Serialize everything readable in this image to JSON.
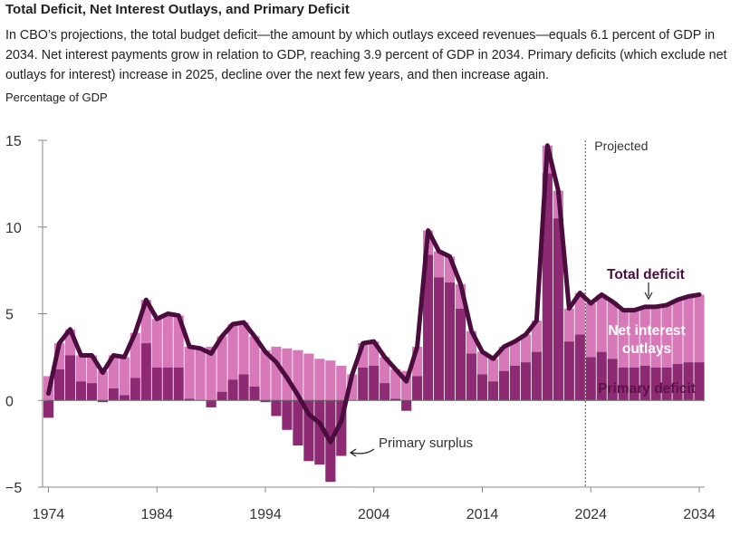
{
  "title": "Total Deficit, Net Interest Outlays, and Primary Deficit",
  "caption": "In CBO’s projections, the total budget deficit—the amount by which outlays exceed revenues—equals 6.1 percent of GDP in 2034. Net interest payments grow in relation to GDP, reaching 3.9 percent of GDP in 2034. Primary deficits (which exclude net outlays for interest) increase in 2025, decline over the next few years, and then increase again.",
  "colors": {
    "total_deficit": "#4a0d3e",
    "net_interest": "#d779b9",
    "primary": "#8e2a73",
    "net_interest_label": "#ffffff",
    "primary_label": "#5a1248"
  },
  "chart_data": {
    "type": "bar",
    "ylabel": "Percentage of GDP",
    "ylim": [
      -5,
      15
    ],
    "yticks": [
      "15",
      "10",
      "5",
      "0",
      "−5"
    ],
    "ytick_values": [
      15,
      10,
      5,
      0,
      -5
    ],
    "xtick_labels": [
      "1974",
      "1984",
      "1994",
      "2004",
      "2014",
      "2024",
      "2034"
    ],
    "xtick_values": [
      1974,
      1984,
      1994,
      2004,
      2014,
      2024,
      2034
    ],
    "projection_start": 2023.5,
    "projection_label": "Projected",
    "years": [
      1974,
      1975,
      1976,
      1977,
      1978,
      1979,
      1980,
      1981,
      1982,
      1983,
      1984,
      1985,
      1986,
      1987,
      1988,
      1989,
      1990,
      1991,
      1992,
      1993,
      1994,
      1995,
      1996,
      1997,
      1998,
      1999,
      2000,
      2001,
      2002,
      2003,
      2004,
      2005,
      2006,
      2007,
      2008,
      2009,
      2010,
      2011,
      2012,
      2013,
      2014,
      2015,
      2016,
      2017,
      2018,
      2019,
      2020,
      2021,
      2022,
      2023,
      2024,
      2025,
      2026,
      2027,
      2028,
      2029,
      2030,
      2031,
      2032,
      2033,
      2034
    ],
    "series": [
      {
        "name": "Total deficit",
        "kind": "line",
        "values": [
          0.4,
          3.3,
          4.1,
          2.6,
          2.6,
          1.6,
          2.6,
          2.5,
          3.9,
          5.8,
          4.7,
          5.0,
          4.9,
          3.1,
          3.0,
          2.7,
          3.7,
          4.4,
          4.5,
          3.7,
          2.8,
          2.2,
          1.3,
          0.3,
          -0.8,
          -1.3,
          -2.4,
          -1.2,
          1.5,
          3.3,
          3.4,
          2.5,
          1.8,
          1.1,
          3.1,
          9.8,
          8.6,
          8.3,
          6.7,
          4.0,
          2.8,
          2.4,
          3.1,
          3.4,
          3.8,
          4.6,
          14.7,
          12.1,
          5.3,
          6.2,
          5.6,
          6.1,
          5.7,
          5.2,
          5.2,
          5.4,
          5.4,
          5.5,
          5.8,
          6.0,
          6.1
        ]
      },
      {
        "name": "Net interest outlays",
        "kind": "bar",
        "values": [
          1.4,
          1.5,
          1.5,
          1.5,
          1.6,
          1.7,
          1.9,
          2.2,
          2.6,
          2.5,
          2.8,
          3.1,
          3.0,
          3.0,
          3.0,
          3.1,
          3.2,
          3.2,
          3.0,
          2.9,
          2.9,
          3.1,
          3.0,
          2.9,
          2.7,
          2.4,
          2.3,
          2.0,
          1.5,
          1.4,
          1.4,
          1.5,
          1.7,
          1.7,
          1.7,
          1.4,
          1.5,
          1.5,
          1.4,
          1.3,
          1.3,
          1.3,
          1.4,
          1.4,
          1.6,
          1.8,
          1.6,
          1.6,
          1.9,
          2.4,
          3.1,
          3.3,
          3.3,
          3.3,
          3.3,
          3.4,
          3.5,
          3.6,
          3.7,
          3.8,
          3.9
        ]
      },
      {
        "name": "Primary deficit",
        "kind": "bar",
        "values": [
          -1.0,
          1.8,
          2.6,
          1.1,
          1.0,
          -0.1,
          0.7,
          0.3,
          1.3,
          3.3,
          1.9,
          1.9,
          1.9,
          0.1,
          0.0,
          -0.4,
          0.5,
          1.2,
          1.5,
          0.8,
          -0.1,
          -0.9,
          -1.7,
          -2.6,
          -3.5,
          -3.7,
          -4.7,
          -3.2,
          0.0,
          1.9,
          2.0,
          1.0,
          0.1,
          -0.6,
          1.4,
          8.4,
          7.1,
          6.8,
          5.3,
          2.7,
          1.5,
          1.1,
          1.7,
          2.0,
          2.2,
          2.8,
          13.1,
          10.5,
          3.4,
          3.8,
          2.5,
          2.8,
          2.4,
          1.9,
          1.9,
          2.0,
          1.9,
          1.9,
          2.1,
          2.2,
          2.2
        ]
      }
    ],
    "annotations": {
      "total_deficit": "Total deficit",
      "net_interest_line1": "Net interest",
      "net_interest_line2": "outlays",
      "primary_deficit": "Primary deficit",
      "primary_surplus": "Primary surplus"
    }
  }
}
